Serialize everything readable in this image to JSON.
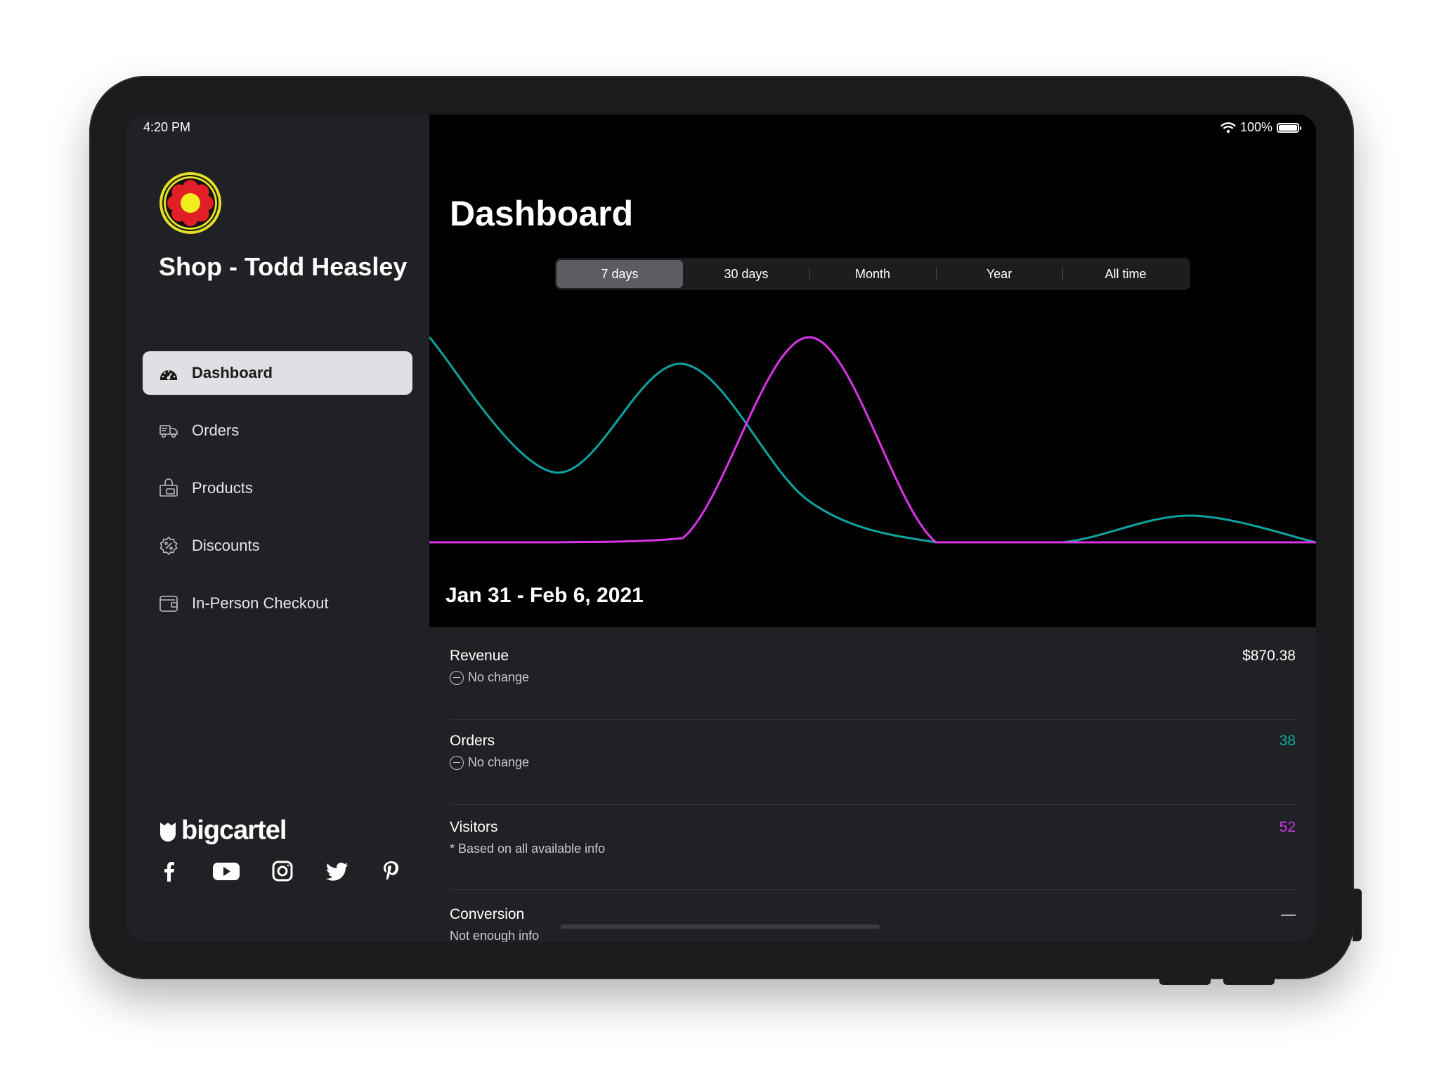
{
  "status": {
    "time": "4:20 PM",
    "battery": "100%"
  },
  "shop": {
    "name": "Shop - Todd Heasley"
  },
  "nav": [
    {
      "label": "Dashboard",
      "icon": "dashboard-icon",
      "active": true
    },
    {
      "label": "Orders",
      "icon": "truck-icon"
    },
    {
      "label": "Products",
      "icon": "shopping-bag-icon"
    },
    {
      "label": "Discounts",
      "icon": "discount-badge-icon"
    },
    {
      "label": "In-Person Checkout",
      "icon": "wallet-icon"
    }
  ],
  "brand": {
    "name": "bigcartel"
  },
  "socials": [
    "facebook-icon",
    "youtube-icon",
    "instagram-icon",
    "twitter-icon",
    "pinterest-icon"
  ],
  "main": {
    "title": "Dashboard",
    "tabs": [
      {
        "label": "7 days",
        "selected": true
      },
      {
        "label": "30 days"
      },
      {
        "label": "Month"
      },
      {
        "label": "Year"
      },
      {
        "label": "All time"
      }
    ],
    "date_range": "Jan 31 - Feb 6, 2021",
    "prev_arrow": "←",
    "next_arrow": "→"
  },
  "chart_data": {
    "type": "line",
    "x": [
      0,
      1,
      2,
      3,
      4,
      5,
      6,
      7
    ],
    "series": [
      {
        "color": "#0fa3a0",
        "values": [
          1.0,
          0.34,
          0.87,
          0.2,
          0.0,
          0.0,
          0.13,
          0.0
        ]
      },
      {
        "color": "#d935e6",
        "values": [
          0.0,
          0.0,
          0.02,
          1.0,
          0.0,
          0.0,
          0.0,
          0.0
        ]
      }
    ],
    "ylim": [
      0,
      1
    ]
  },
  "stats": {
    "revenue": {
      "label": "Revenue",
      "value": "$870.38",
      "sub": "No change",
      "color": "#ffffff"
    },
    "orders": {
      "label": "Orders",
      "value": "38",
      "sub": "No change",
      "color": "#14a5a0"
    },
    "visitors": {
      "label": "Visitors",
      "value": "52",
      "sub": "* Based on all available info",
      "color": "#c438e0"
    },
    "conversion": {
      "label": "Conversion",
      "value": "—",
      "sub": "Not enough info",
      "color": "#ffffff"
    }
  }
}
